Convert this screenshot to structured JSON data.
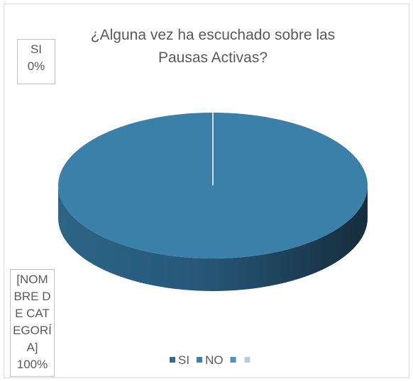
{
  "chart_data": {
    "type": "pie",
    "title": "¿Alguna vez ha escuchado sobre las Pausas Activas?",
    "categories": [
      "SI",
      "NO",
      null,
      null
    ],
    "values": [
      0,
      100,
      null,
      null
    ],
    "value_labels": [
      "0%",
      "100%",
      null,
      null
    ],
    "label_categories": [
      "SI",
      "[NOMBRE DE CATEGORÍA]",
      null,
      null
    ],
    "colors": [
      "#2f6d93",
      "#3a80a8",
      "#4f92bd",
      "#b9cde0"
    ],
    "legend": "bottom"
  }
}
